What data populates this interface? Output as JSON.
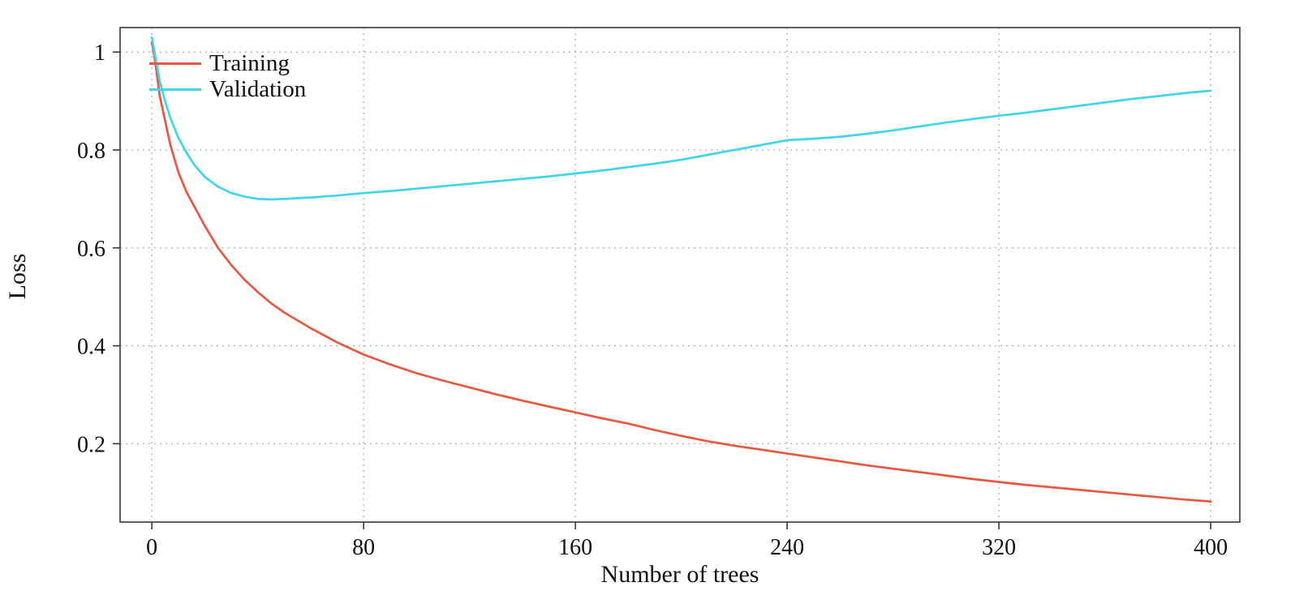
{
  "colors": {
    "grid": "#b0b0b0",
    "frame": "#3a3a3a",
    "text": "#111111"
  },
  "chart_data": {
    "type": "line",
    "title": "",
    "xlabel": "Number of trees",
    "ylabel": "Loss",
    "legend_position": "top-left",
    "axes": {
      "xlim": [
        -12,
        411
      ],
      "ylim": [
        0.04,
        1.05
      ],
      "xticks": [
        0,
        80,
        160,
        240,
        320,
        400
      ],
      "xtick_labels": [
        "0",
        "80",
        "160",
        "240",
        "320",
        "400"
      ],
      "yticks": [
        0.2,
        0.4,
        0.6,
        0.8,
        1
      ],
      "ytick_labels": [
        "0.2",
        "0.4",
        "0.6",
        "0.8",
        "1"
      ],
      "grid": "dotted"
    },
    "series": [
      {
        "name": "Training",
        "color": "#e8573f",
        "points": [
          [
            0,
            1.02
          ],
          [
            1,
            0.99
          ],
          [
            2,
            0.95
          ],
          [
            3,
            0.91
          ],
          [
            5,
            0.86
          ],
          [
            7,
            0.81
          ],
          [
            10,
            0.755
          ],
          [
            13,
            0.715
          ],
          [
            16,
            0.685
          ],
          [
            20,
            0.645
          ],
          [
            25,
            0.6
          ],
          [
            30,
            0.565
          ],
          [
            35,
            0.535
          ],
          [
            40,
            0.51
          ],
          [
            45,
            0.487
          ],
          [
            50,
            0.468
          ],
          [
            60,
            0.436
          ],
          [
            70,
            0.407
          ],
          [
            80,
            0.382
          ],
          [
            90,
            0.362
          ],
          [
            100,
            0.344
          ],
          [
            110,
            0.329
          ],
          [
            120,
            0.315
          ],
          [
            130,
            0.301
          ],
          [
            140,
            0.288
          ],
          [
            150,
            0.276
          ],
          [
            160,
            0.264
          ],
          [
            170,
            0.252
          ],
          [
            180,
            0.241
          ],
          [
            190,
            0.228
          ],
          [
            200,
            0.216
          ],
          [
            210,
            0.205
          ],
          [
            220,
            0.196
          ],
          [
            230,
            0.188
          ],
          [
            240,
            0.18
          ],
          [
            250,
            0.172
          ],
          [
            260,
            0.164
          ],
          [
            270,
            0.156
          ],
          [
            280,
            0.149
          ],
          [
            290,
            0.142
          ],
          [
            300,
            0.135
          ],
          [
            310,
            0.128
          ],
          [
            320,
            0.122
          ],
          [
            330,
            0.116
          ],
          [
            340,
            0.111
          ],
          [
            350,
            0.106
          ],
          [
            360,
            0.101
          ],
          [
            370,
            0.096
          ],
          [
            380,
            0.091
          ],
          [
            390,
            0.086
          ],
          [
            400,
            0.082
          ]
        ]
      },
      {
        "name": "Validation",
        "color": "#40d6e8",
        "points": [
          [
            0,
            1.03
          ],
          [
            1,
            1.0
          ],
          [
            2,
            0.97
          ],
          [
            3,
            0.94
          ],
          [
            5,
            0.9
          ],
          [
            7,
            0.865
          ],
          [
            10,
            0.825
          ],
          [
            13,
            0.795
          ],
          [
            16,
            0.77
          ],
          [
            20,
            0.745
          ],
          [
            25,
            0.725
          ],
          [
            30,
            0.712
          ],
          [
            35,
            0.705
          ],
          [
            40,
            0.7
          ],
          [
            45,
            0.699
          ],
          [
            50,
            0.7
          ],
          [
            60,
            0.703
          ],
          [
            70,
            0.707
          ],
          [
            80,
            0.712
          ],
          [
            90,
            0.716
          ],
          [
            100,
            0.721
          ],
          [
            110,
            0.726
          ],
          [
            120,
            0.731
          ],
          [
            130,
            0.736
          ],
          [
            140,
            0.741
          ],
          [
            150,
            0.746
          ],
          [
            160,
            0.752
          ],
          [
            170,
            0.758
          ],
          [
            180,
            0.765
          ],
          [
            190,
            0.772
          ],
          [
            200,
            0.78
          ],
          [
            210,
            0.79
          ],
          [
            220,
            0.8
          ],
          [
            230,
            0.81
          ],
          [
            240,
            0.82
          ],
          [
            250,
            0.823
          ],
          [
            260,
            0.827
          ],
          [
            270,
            0.833
          ],
          [
            280,
            0.84
          ],
          [
            290,
            0.848
          ],
          [
            300,
            0.856
          ],
          [
            310,
            0.863
          ],
          [
            320,
            0.87
          ],
          [
            330,
            0.876
          ],
          [
            340,
            0.883
          ],
          [
            350,
            0.89
          ],
          [
            360,
            0.897
          ],
          [
            370,
            0.904
          ],
          [
            380,
            0.91
          ],
          [
            390,
            0.916
          ],
          [
            400,
            0.921
          ]
        ]
      }
    ]
  }
}
